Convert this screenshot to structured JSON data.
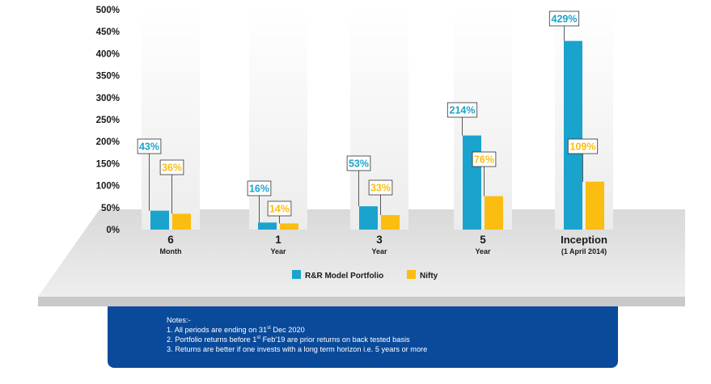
{
  "chart_data": {
    "type": "bar",
    "categories": [
      {
        "main": "6",
        "sub": "Month"
      },
      {
        "main": "1",
        "sub": "Year"
      },
      {
        "main": "3",
        "sub": "Year"
      },
      {
        "main": "5",
        "sub": "Year"
      },
      {
        "main": "Inception",
        "sub": "(1 April 2014)"
      }
    ],
    "series": [
      {
        "name": "R&R Model Portfolio",
        "color": "#1aa3cc",
        "values": [
          43,
          16,
          53,
          214,
          429
        ],
        "labels": [
          "43%",
          "16%",
          "53%",
          "214%",
          "429%"
        ]
      },
      {
        "name": "Nifty",
        "color": "#fbbd10",
        "values": [
          36,
          14,
          33,
          76,
          109
        ],
        "labels": [
          "36%",
          "14%",
          "33%",
          "76%",
          "109%"
        ]
      }
    ],
    "yticks": [
      "0%",
      "50%",
      "100%",
      "150%",
      "200%",
      "250%",
      "300%",
      "350%",
      "400%",
      "450%",
      "500%"
    ],
    "ylim": [
      0,
      500
    ],
    "legend_position": "bottom-center",
    "title": "",
    "xlabel": "",
    "ylabel": ""
  },
  "notes": {
    "heading": "Notes:-",
    "line1_before": "1. All periods are ending on 31",
    "line1_sup": "st",
    "line1_after": " Dec 2020",
    "line2_before": "2. Portfolio returns before 1",
    "line2_sup": "st",
    "line2_after": " Feb'19 are prior returns on back tested basis",
    "line3": "3. Returns are better if one invests with a long term horizon i.e. 5 years or more"
  }
}
